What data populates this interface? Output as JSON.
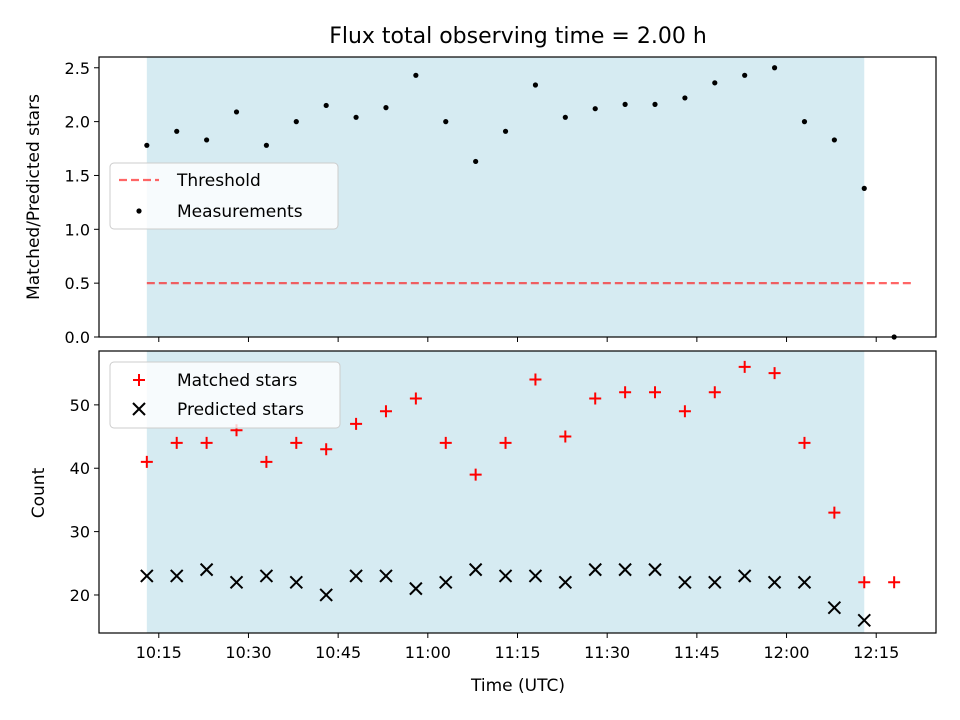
{
  "title": "Flux total observing time = 2.00 h",
  "colors": {
    "shade": "#add8e6",
    "threshold": "#ff0000",
    "measurement": "#000000",
    "matched": "#ff0000",
    "predicted": "#000000"
  },
  "chart_data": [
    {
      "type": "scatter",
      "panel": "top",
      "ylabel": "Matched/Predicted stars",
      "ylim": [
        0,
        2.6
      ],
      "yticks": [
        "0.0",
        "0.5",
        "1.0",
        "1.5",
        "2.0",
        "2.5"
      ],
      "x_unit": "minutes after 10:00 UTC",
      "shaded_span": [
        13,
        133
      ],
      "grid": false,
      "legend_placement": "center-left",
      "series": [
        {
          "name": "Threshold",
          "style": "dashed-line",
          "x": [
            13,
            141
          ],
          "values": [
            0.5,
            0.5
          ]
        },
        {
          "name": "Measurements",
          "style": "dot",
          "x": [
            13,
            18,
            23,
            28,
            33,
            38,
            43,
            48,
            53,
            58,
            63,
            68,
            73,
            78,
            83,
            88,
            93,
            98,
            103,
            108,
            113,
            118,
            123,
            128,
            133,
            138
          ],
          "values": [
            1.78,
            1.91,
            1.83,
            2.09,
            1.78,
            2.0,
            2.15,
            2.04,
            2.13,
            2.43,
            2.0,
            1.63,
            1.91,
            2.34,
            2.04,
            2.12,
            2.16,
            2.16,
            2.22,
            2.36,
            2.43,
            2.5,
            2.0,
            1.83,
            1.38,
            0.0
          ]
        }
      ]
    },
    {
      "type": "scatter",
      "panel": "bottom",
      "xlabel": "Time (UTC)",
      "ylabel": "Count",
      "ylim": [
        14,
        58.5
      ],
      "yticks": [
        "20",
        "30",
        "40",
        "50"
      ],
      "xlim": [
        5,
        145
      ],
      "xticks": [
        "10:15",
        "10:30",
        "10:45",
        "11:00",
        "11:15",
        "11:30",
        "11:45",
        "12:00",
        "12:15"
      ],
      "shaded_span": [
        13,
        133
      ],
      "grid": false,
      "legend_placement": "top-left",
      "series": [
        {
          "name": "Matched stars",
          "marker": "plus",
          "x": [
            13,
            18,
            23,
            28,
            33,
            38,
            43,
            48,
            53,
            58,
            63,
            68,
            73,
            78,
            83,
            88,
            93,
            98,
            103,
            108,
            113,
            118,
            123,
            128,
            133,
            138
          ],
          "values": [
            41,
            44,
            44,
            46,
            41,
            44,
            43,
            47,
            49,
            51,
            44,
            39,
            44,
            54,
            45,
            51,
            52,
            52,
            49,
            52,
            56,
            55,
            44,
            33,
            22,
            22
          ]
        },
        {
          "name": "Predicted stars",
          "marker": "x",
          "x": [
            13,
            18,
            23,
            28,
            33,
            38,
            43,
            48,
            53,
            58,
            63,
            68,
            73,
            78,
            83,
            88,
            93,
            98,
            103,
            108,
            113,
            118,
            123,
            128,
            133
          ],
          "values": [
            23,
            23,
            24,
            22,
            23,
            22,
            20,
            23,
            23,
            21,
            22,
            24,
            23,
            23,
            22,
            24,
            24,
            24,
            22,
            22,
            23,
            22,
            22,
            18,
            16
          ]
        }
      ]
    }
  ]
}
